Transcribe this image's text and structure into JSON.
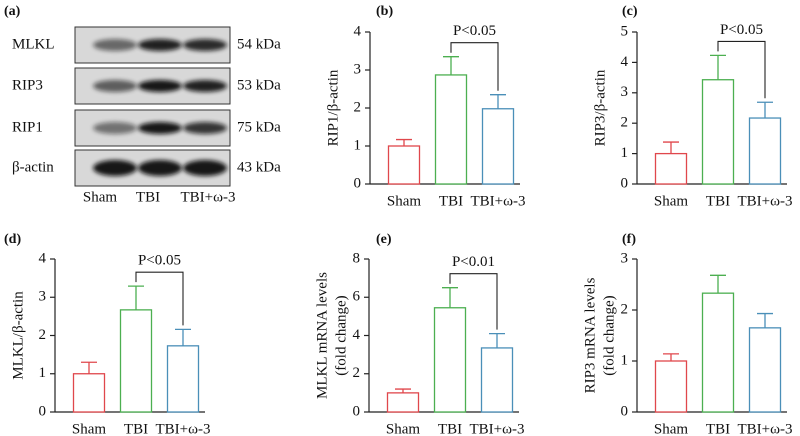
{
  "blot": {
    "panel_label": "(a)",
    "rows": [
      {
        "name": "MLKL",
        "size": "54 kDa"
      },
      {
        "name": "RIP3",
        "size": "53 kDa"
      },
      {
        "name": "RIP1",
        "size": "75 kDa"
      },
      {
        "name": "β-actin",
        "size": "43 kDa"
      }
    ],
    "lanes": [
      "Sham",
      "TBI",
      "TBI+ω-3"
    ]
  },
  "chart_data": [
    {
      "type": "bar",
      "panel_label": "(b)",
      "ylabel": [
        "RIP1/β-actin"
      ],
      "categories": [
        "Sham",
        "TBI",
        "TBI+ω-3"
      ],
      "values": [
        1.0,
        2.87,
        1.98
      ],
      "errors": [
        0.17,
        0.48,
        0.37
      ],
      "colors": [
        "#e0474c",
        "#4caf50",
        "#4a8fb8"
      ],
      "ylim": [
        0,
        4
      ],
      "yticks": [
        0,
        1,
        2,
        3,
        4
      ],
      "annotation": "P<0.05"
    },
    {
      "type": "bar",
      "panel_label": "(c)",
      "ylabel": [
        "RIP3/β-actin"
      ],
      "categories": [
        "Sham",
        "TBI",
        "TBI+ω-3"
      ],
      "values": [
        1.0,
        3.43,
        2.17
      ],
      "errors": [
        0.38,
        0.8,
        0.52
      ],
      "colors": [
        "#e0474c",
        "#4caf50",
        "#4a8fb8"
      ],
      "ylim": [
        0,
        5
      ],
      "yticks": [
        0,
        1,
        2,
        3,
        4,
        5
      ],
      "annotation": "P<0.05"
    },
    {
      "type": "bar",
      "panel_label": "(d)",
      "ylabel": [
        "MLKL/β-actin"
      ],
      "categories": [
        "Sham",
        "TBI",
        "TBI+ω-3"
      ],
      "values": [
        1.0,
        2.67,
        1.73
      ],
      "errors": [
        0.3,
        0.62,
        0.43
      ],
      "colors": [
        "#e0474c",
        "#4caf50",
        "#4a8fb8"
      ],
      "ylim": [
        0,
        4
      ],
      "yticks": [
        0,
        1,
        2,
        3,
        4
      ],
      "annotation": "P<0.05"
    },
    {
      "type": "bar",
      "panel_label": "(e)",
      "ylabel": [
        "MLKL mRNA levels",
        "(fold change)"
      ],
      "categories": [
        "Sham",
        "TBI",
        "TBI+ω-3"
      ],
      "values": [
        1.0,
        5.45,
        3.35
      ],
      "errors": [
        0.2,
        1.05,
        0.75
      ],
      "colors": [
        "#e0474c",
        "#4caf50",
        "#4a8fb8"
      ],
      "ylim": [
        0,
        8
      ],
      "yticks": [
        0,
        2,
        4,
        6,
        8
      ],
      "annotation": "P<0.01"
    },
    {
      "type": "bar",
      "panel_label": "(f)",
      "ylabel": [
        "RIP3 mRNA levels",
        "(fold change)"
      ],
      "categories": [
        "Sham",
        "TBI",
        "TBI+ω-3"
      ],
      "values": [
        1.0,
        2.33,
        1.65
      ],
      "errors": [
        0.14,
        0.35,
        0.28
      ],
      "colors": [
        "#e0474c",
        "#4caf50",
        "#4a8fb8"
      ],
      "ylim": [
        0,
        3
      ],
      "yticks": [
        0,
        1,
        2,
        3
      ]
    }
  ]
}
